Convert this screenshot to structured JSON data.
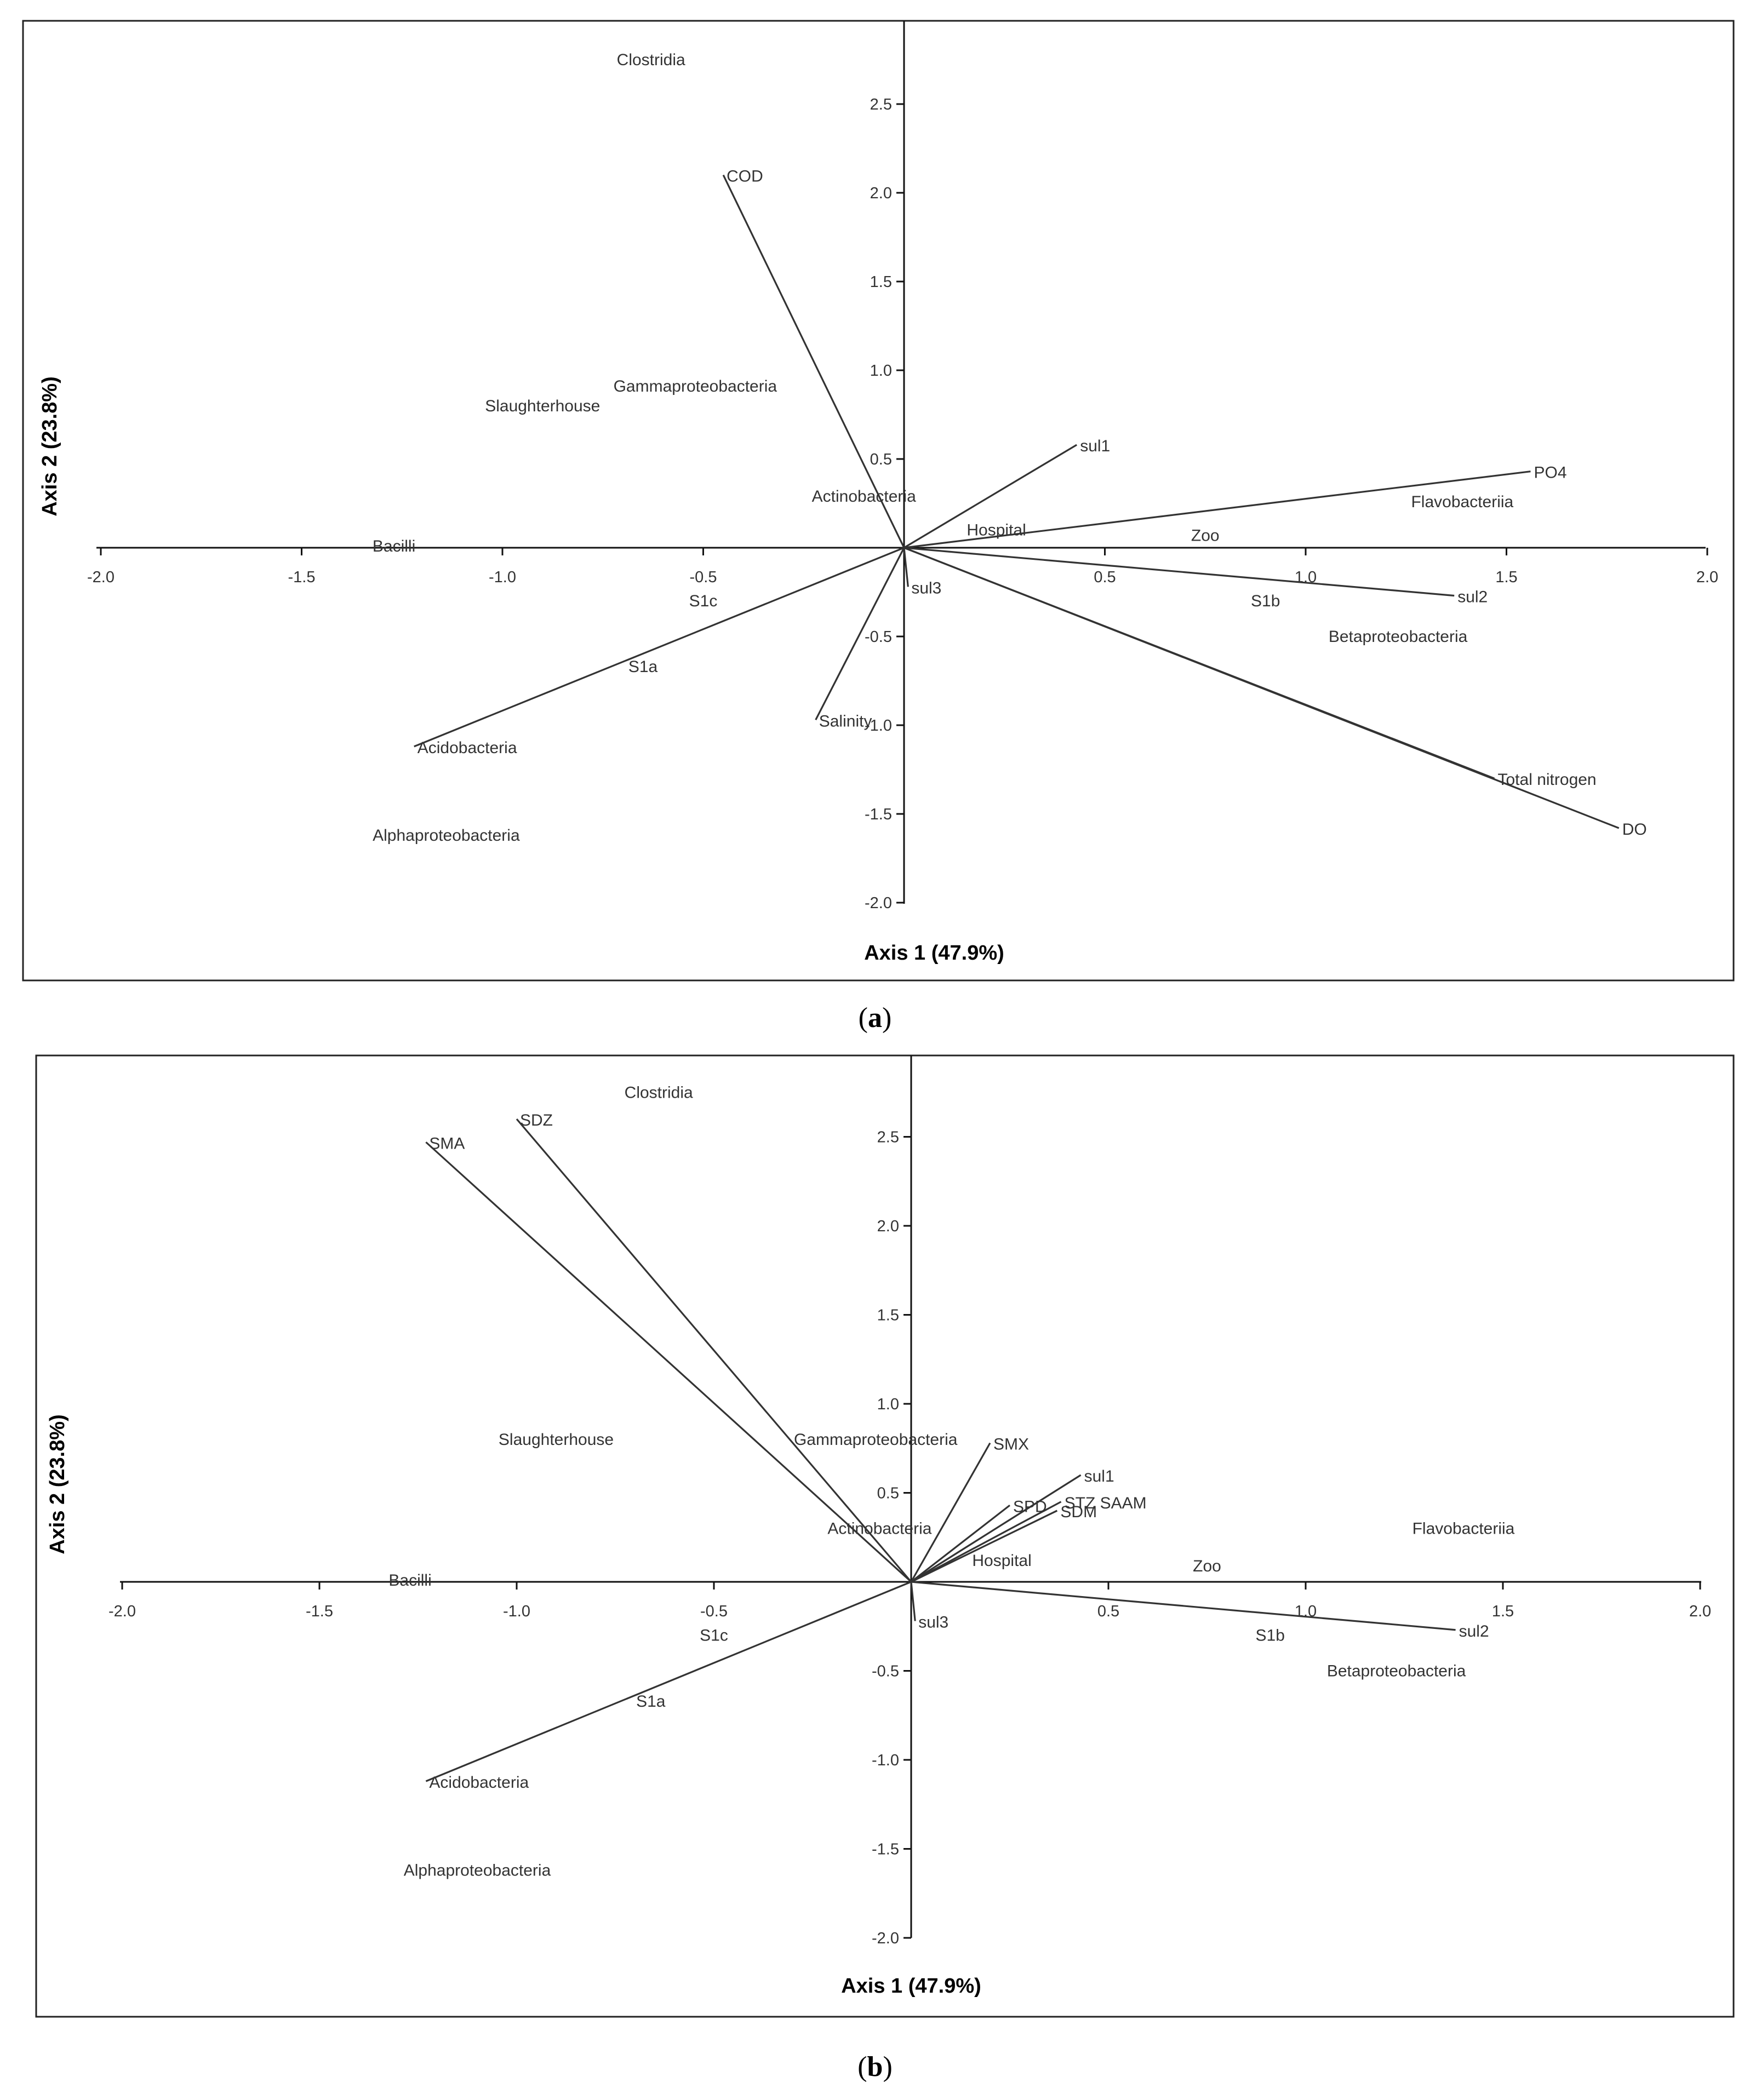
{
  "chart_data": [
    {
      "type": "scatter",
      "subtype": "ordination biplot",
      "panel_label": "a",
      "xlabel": "Axis 1 (47.9%)",
      "ylabel": "Axis 2 (23.8%)",
      "xlim": [
        -2.0,
        2.0
      ],
      "ylim": [
        -2.0,
        2.9
      ],
      "x_ticks": [
        {
          "value": -2.0,
          "label": "-2.0"
        },
        {
          "value": -1.5,
          "label": "-1.5"
        },
        {
          "value": -1.0,
          "label": "-1.0"
        },
        {
          "value": -0.5,
          "label": "-0.5"
        },
        {
          "value": 0.5,
          "label": "0.5"
        },
        {
          "value": 1.0,
          "label": "1.0"
        },
        {
          "value": 1.5,
          "label": "1.5"
        },
        {
          "value": 2.0,
          "label": "2.0"
        }
      ],
      "y_ticks": [
        {
          "value": 2.5,
          "label": "2.5"
        },
        {
          "value": 2.0,
          "label": "2.0"
        },
        {
          "value": 1.5,
          "label": "1.5"
        },
        {
          "value": 1.0,
          "label": "1.0"
        },
        {
          "value": 0.5,
          "label": "0.5"
        },
        {
          "value": -0.5,
          "label": "-0.5"
        },
        {
          "value": -1.0,
          "label": "-1.0"
        },
        {
          "value": -1.5,
          "label": "-1.5"
        },
        {
          "value": -2.0,
          "label": "-2.0"
        }
      ],
      "vectors": [
        {
          "name": "COD",
          "x": -0.45,
          "y": 2.1
        },
        {
          "name": "sul1",
          "x": 0.43,
          "y": 0.58
        },
        {
          "name": "PO4",
          "x": 1.56,
          "y": 0.43
        },
        {
          "name": "sul2",
          "x": 1.37,
          "y": -0.27
        },
        {
          "name": "Total nitrogen",
          "x": 1.47,
          "y": -1.3
        },
        {
          "name": "DO",
          "x": 1.78,
          "y": -1.58
        },
        {
          "name": "sul3",
          "x": 0.01,
          "y": -0.22
        },
        {
          "name": "Salinity",
          "x": -0.22,
          "y": -0.97
        },
        {
          "name": "Acidobacteria",
          "x": -1.22,
          "y": -1.12
        }
      ],
      "points": [
        {
          "name": "Clostridia",
          "x": -0.63,
          "y": 2.75
        },
        {
          "name": "Gammaproteobacteria",
          "x": -0.52,
          "y": 0.91
        },
        {
          "name": "Slaughterhouse",
          "x": -0.9,
          "y": 0.8
        },
        {
          "name": "Actinobacteria",
          "x": -0.1,
          "y": 0.29
        },
        {
          "name": "Hospital",
          "x": 0.23,
          "y": 0.1
        },
        {
          "name": "Zoo",
          "x": 0.75,
          "y": 0.07
        },
        {
          "name": "Flavobacteriia",
          "x": 1.39,
          "y": 0.26
        },
        {
          "name": "Bacilli",
          "x": -1.27,
          "y": 0.01
        },
        {
          "name": "S1c",
          "x": -0.5,
          "y": -0.3
        },
        {
          "name": "S1b",
          "x": 0.9,
          "y": -0.3
        },
        {
          "name": "Betaproteobacteria",
          "x": 1.23,
          "y": -0.5
        },
        {
          "name": "S1a",
          "x": -0.65,
          "y": -0.67
        },
        {
          "name": "Alphaproteobacteria",
          "x": -1.14,
          "y": -1.62
        }
      ]
    },
    {
      "type": "scatter",
      "subtype": "ordination biplot",
      "panel_label": "b",
      "xlabel": "Axis 1 (47.9%)",
      "ylabel": "Axis 2 (23.8%)",
      "xlim": [
        -2.0,
        2.0
      ],
      "ylim": [
        -2.0,
        2.9
      ],
      "x_ticks": [
        {
          "value": -2.0,
          "label": "-2.0"
        },
        {
          "value": -1.5,
          "label": "-1.5"
        },
        {
          "value": -1.0,
          "label": "-1.0"
        },
        {
          "value": -0.5,
          "label": "-0.5"
        },
        {
          "value": 0.5,
          "label": "0.5"
        },
        {
          "value": 1.0,
          "label": "1.0"
        },
        {
          "value": 1.5,
          "label": "1.5"
        },
        {
          "value": 2.0,
          "label": "2.0"
        }
      ],
      "y_ticks": [
        {
          "value": 2.5,
          "label": "2.5"
        },
        {
          "value": 2.0,
          "label": "2.0"
        },
        {
          "value": 1.5,
          "label": "1.5"
        },
        {
          "value": 1.0,
          "label": "1.0"
        },
        {
          "value": 0.5,
          "label": "0.5"
        },
        {
          "value": -0.5,
          "label": "-0.5"
        },
        {
          "value": -1.0,
          "label": "-1.0"
        },
        {
          "value": -1.5,
          "label": "-1.5"
        },
        {
          "value": -2.0,
          "label": "-2.0"
        }
      ],
      "vectors": [
        {
          "name": "SMA",
          "x": -1.23,
          "y": 2.47
        },
        {
          "name": "SDZ",
          "x": -1.0,
          "y": 2.6
        },
        {
          "name": "SMX",
          "x": 0.2,
          "y": 0.78
        },
        {
          "name": "sul1",
          "x": 0.43,
          "y": 0.6
        },
        {
          "name": "SPD",
          "x": 0.25,
          "y": 0.43
        },
        {
          "name": "STZ SAAM",
          "x": 0.38,
          "y": 0.45
        },
        {
          "name": "SDM",
          "x": 0.37,
          "y": 0.4
        },
        {
          "name": "sul2",
          "x": 1.38,
          "y": -0.27
        },
        {
          "name": "sul3",
          "x": 0.01,
          "y": -0.22
        },
        {
          "name": "Acidobacteria",
          "x": -1.23,
          "y": -1.12
        }
      ],
      "points": [
        {
          "name": "Clostridia",
          "x": -0.64,
          "y": 2.75
        },
        {
          "name": "Slaughterhouse",
          "x": -0.9,
          "y": 0.8
        },
        {
          "name": "Gammaproteobacteria",
          "x": -0.09,
          "y": 0.8
        },
        {
          "name": "Actinobacteria",
          "x": -0.08,
          "y": 0.3
        },
        {
          "name": "Hospital",
          "x": 0.23,
          "y": 0.12
        },
        {
          "name": "Zoo",
          "x": 0.75,
          "y": 0.09
        },
        {
          "name": "Flavobacteriia",
          "x": 1.4,
          "y": 0.3
        },
        {
          "name": "Bacilli",
          "x": -1.27,
          "y": 0.01
        },
        {
          "name": "S1c",
          "x": -0.5,
          "y": -0.3
        },
        {
          "name": "S1b",
          "x": 0.91,
          "y": -0.3
        },
        {
          "name": "Betaproteobacteria",
          "x": 1.23,
          "y": -0.5
        },
        {
          "name": "S1a",
          "x": -0.66,
          "y": -0.67
        },
        {
          "name": "Alphaproteobacteria",
          "x": -1.1,
          "y": -1.62
        }
      ]
    }
  ]
}
